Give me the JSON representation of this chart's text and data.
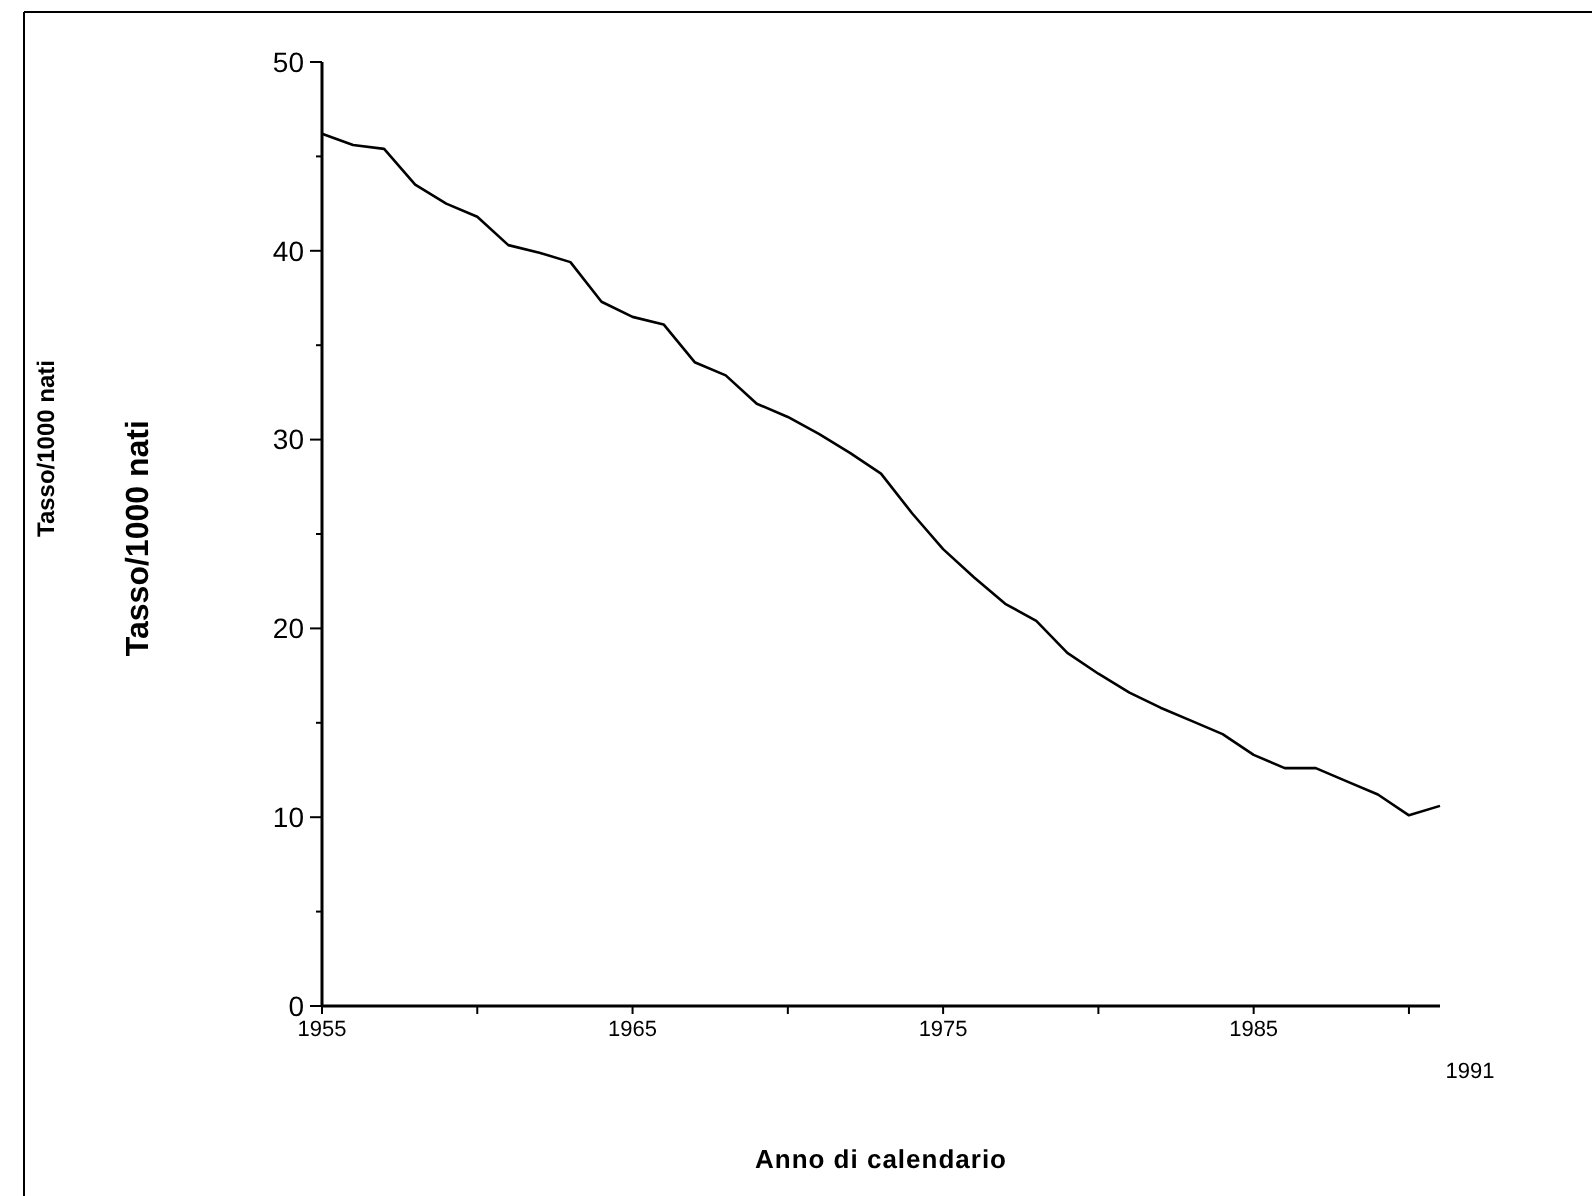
{
  "chart_data": {
    "type": "line",
    "xlabel": "Anno di calendario",
    "ylabel": "Tasso/1000 nati",
    "annotations": [
      "Tasso/1000 nati",
      "1991"
    ],
    "x": [
      1955,
      1956,
      1957,
      1958,
      1959,
      1960,
      1961,
      1962,
      1963,
      1964,
      1965,
      1966,
      1967,
      1968,
      1969,
      1970,
      1971,
      1972,
      1973,
      1974,
      1975,
      1976,
      1977,
      1978,
      1979,
      1980,
      1981,
      1982,
      1983,
      1984,
      1985,
      1986,
      1987,
      1988,
      1989,
      1990,
      1991
    ],
    "series": [
      {
        "color": "#000000",
        "values": [
          46.2,
          45.6,
          45.4,
          43.5,
          42.5,
          41.8,
          40.3,
          39.9,
          39.4,
          37.3,
          36.5,
          36.1,
          34.1,
          33.4,
          31.9,
          31.2,
          30.3,
          29.3,
          28.2,
          26.1,
          24.2,
          22.7,
          21.3,
          20.4,
          18.7,
          17.6,
          16.6,
          15.8,
          15.1,
          14.4,
          13.3,
          12.6,
          12.6,
          11.9,
          11.2,
          10.1,
          10.6
        ]
      }
    ],
    "xlim": [
      1955,
      1991
    ],
    "xticks": [
      1955,
      {
        "value": 1960,
        "label": null
      },
      1965,
      {
        "value": 1970,
        "label": null
      },
      1975,
      {
        "value": 1980,
        "label": null
      },
      1985,
      {
        "value": 1990,
        "label": null
      }
    ],
    "ylim": [
      0,
      50
    ],
    "yticks": [
      0,
      {
        "value": 5,
        "label": null
      },
      10,
      {
        "value": 15,
        "label": null
      },
      20,
      {
        "value": 25,
        "label": null
      },
      30,
      {
        "value": 35,
        "label": null
      },
      40,
      {
        "value": 45,
        "label": null
      },
      50
    ],
    "grid": false,
    "marker": "none",
    "line_style": "solid"
  }
}
